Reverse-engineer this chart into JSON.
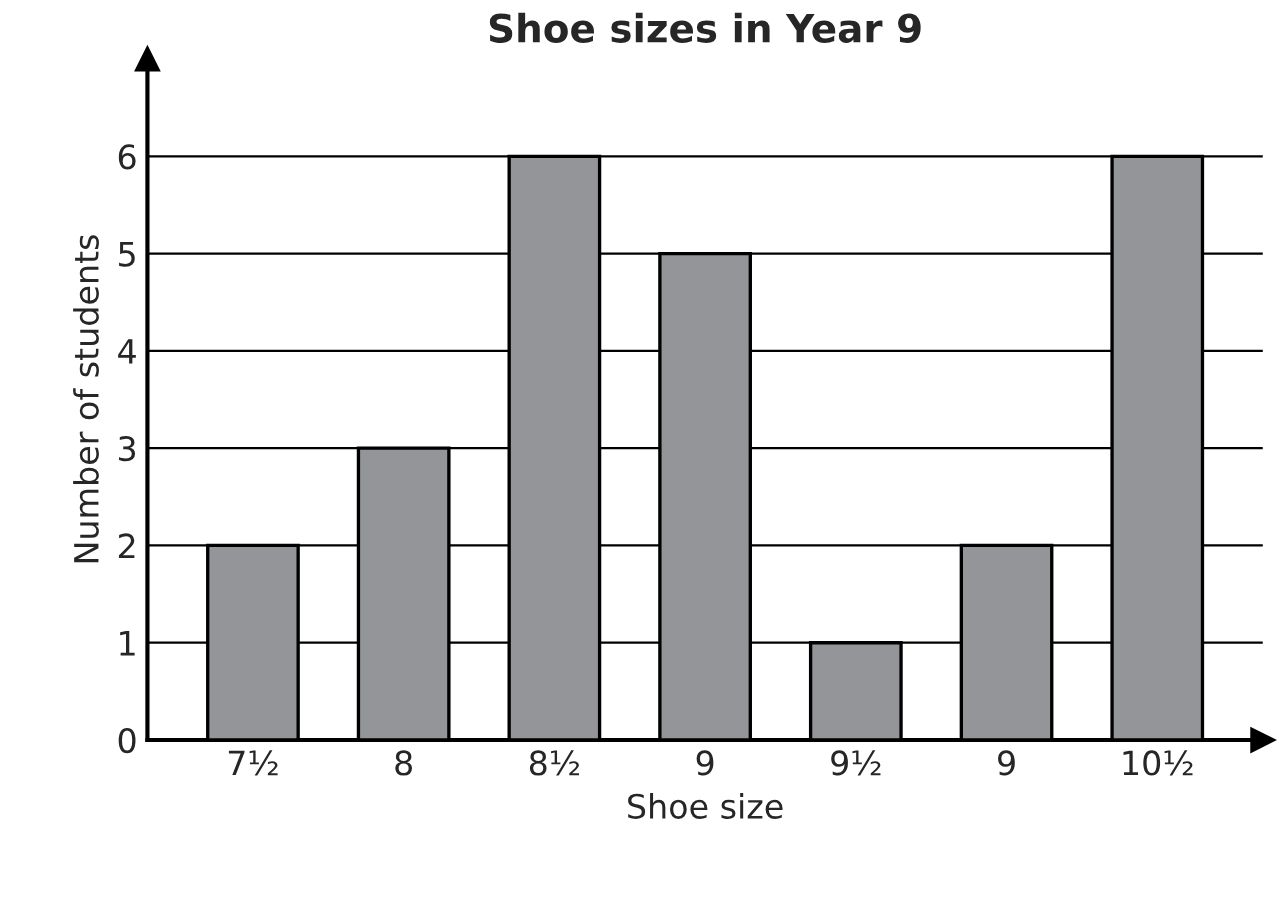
{
  "chart_data": {
    "type": "bar",
    "title": "Shoe sizes in Year 9",
    "xlabel": "Shoe size",
    "ylabel": "Number of students",
    "categories": [
      "7½",
      "8",
      "8½",
      "9",
      "9½",
      "9",
      "10½"
    ],
    "values": [
      2,
      3,
      6,
      5,
      1,
      2,
      6
    ],
    "color": "#939598",
    "ylim": [
      0,
      7
    ],
    "yticks": [
      0,
      1,
      2,
      3,
      4,
      5,
      6
    ],
    "grid": "y"
  }
}
